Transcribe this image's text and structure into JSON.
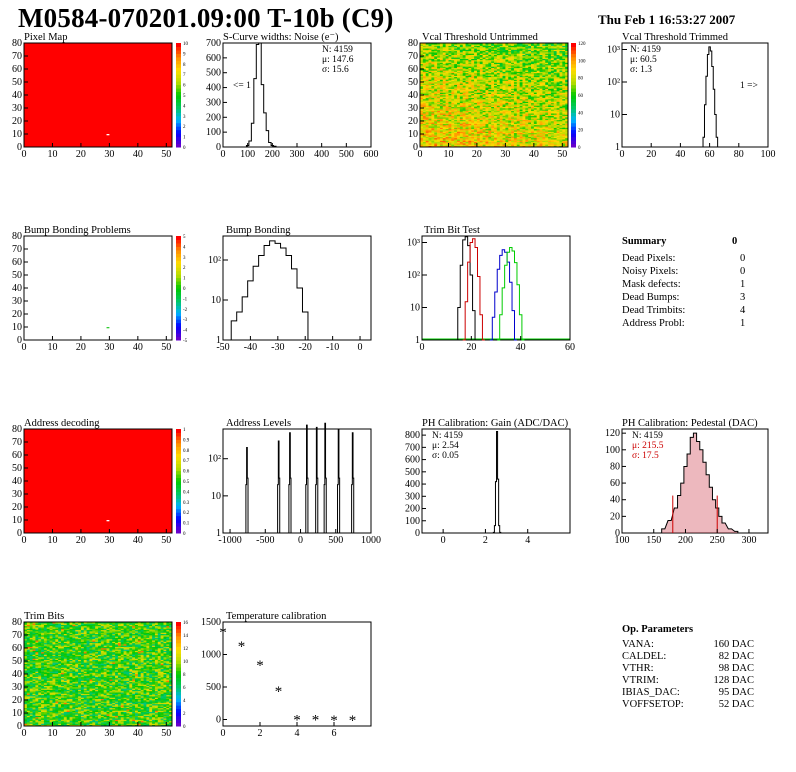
{
  "header": {
    "title": "M0584-070201.09:00 T-10b (C9)",
    "date": "Thu Feb  1 16:53:27 2007"
  },
  "colors": {
    "red_map": "#ff0000",
    "green_map": "#33cc33",
    "trim_series": [
      "#000000",
      "#cc0000",
      "#0000cc",
      "#00cc00"
    ],
    "pedestal_fill": "#cc3344"
  },
  "panels": {
    "pixel_map": {
      "title": "Pixel Map",
      "xticks": [
        "0",
        "10",
        "20",
        "30",
        "40",
        "50"
      ],
      "yticks": [
        "0",
        "10",
        "20",
        "30",
        "40",
        "50",
        "60",
        "70",
        "80"
      ],
      "palette_ticks": [
        "0",
        "1",
        "2",
        "3",
        "4",
        "5",
        "6",
        "7",
        "8",
        "9",
        "10"
      ]
    },
    "scurve": {
      "title": "S-Curve widths: Noise (e⁻)",
      "xticks": [
        "0",
        "100",
        "200",
        "300",
        "400",
        "500",
        "600"
      ],
      "yticks": [
        "0",
        "100",
        "200",
        "300",
        "400",
        "500",
        "600",
        "700"
      ],
      "stats": [
        "N: 4159",
        "μ: 147.6",
        "σ: 15.6"
      ],
      "overflow_label": "<= 1"
    },
    "vcal_untrimmed": {
      "title": "Vcal Threshold Untrimmed",
      "xticks": [
        "0",
        "10",
        "20",
        "30",
        "40",
        "50"
      ],
      "yticks": [
        "0",
        "10",
        "20",
        "30",
        "40",
        "50",
        "60",
        "70",
        "80"
      ],
      "palette_ticks": [
        "0",
        "20",
        "40",
        "60",
        "80",
        "100",
        "120"
      ]
    },
    "vcal_trimmed": {
      "title": "Vcal Threshold Trimmed",
      "xticks": [
        "0",
        "20",
        "40",
        "60",
        "80",
        "100"
      ],
      "yticks": [
        "1",
        "10",
        "10²",
        "10³"
      ],
      "stats": [
        "N: 4159",
        "μ: 60.5",
        "σ:  1.3"
      ],
      "overflow_label": "1 =>"
    },
    "bump_problems": {
      "title": "Bump Bonding Problems",
      "xticks": [
        "0",
        "10",
        "20",
        "30",
        "40",
        "50"
      ],
      "yticks": [
        "0",
        "10",
        "20",
        "30",
        "40",
        "50",
        "60",
        "70",
        "80"
      ],
      "palette_ticks": [
        "-5",
        "-4",
        "-3",
        "-2",
        "-1",
        "0",
        "1",
        "2",
        "3",
        "4",
        "5"
      ]
    },
    "bump_bonding": {
      "title": "Bump Bonding",
      "xticks": [
        "-50",
        "-40",
        "-30",
        "-20",
        "-10",
        "0"
      ],
      "yticks": [
        "1",
        "10",
        "10²"
      ]
    },
    "trim_bit_test": {
      "title": "Trim Bit Test",
      "xticks": [
        "0",
        "20",
        "40",
        "60"
      ],
      "yticks": [
        "1",
        "10",
        "10²",
        "10³"
      ]
    },
    "address_decoding": {
      "title": "Address decoding",
      "xticks": [
        "0",
        "10",
        "20",
        "30",
        "40",
        "50"
      ],
      "yticks": [
        "0",
        "10",
        "20",
        "30",
        "40",
        "50",
        "60",
        "70",
        "80"
      ],
      "palette_ticks": [
        "0",
        "0.1",
        "0.2",
        "0.3",
        "0.4",
        "0.5",
        "0.6",
        "0.7",
        "0.8",
        "0.9",
        "1"
      ]
    },
    "address_levels": {
      "title": "Address Levels",
      "xticks": [
        "-1000",
        "-500",
        "0",
        "500",
        "1000"
      ],
      "yticks": [
        "1",
        "10",
        "10²"
      ]
    },
    "ph_gain": {
      "title": "PH Calibration: Gain (ADC/DAC)",
      "xticks": [
        "0",
        "2",
        "4"
      ],
      "yticks": [
        "0",
        "100",
        "200",
        "300",
        "400",
        "500",
        "600",
        "700",
        "800"
      ],
      "stats": [
        "N: 4159",
        "μ: 2.54",
        "σ: 0.05"
      ]
    },
    "ph_pedestal": {
      "title": "PH Calibration: Pedestal (DAC)",
      "xticks": [
        "100",
        "150",
        "200",
        "250",
        "300"
      ],
      "yticks": [
        "0",
        "20",
        "40",
        "60",
        "80",
        "100",
        "120"
      ],
      "stats": [
        "N: 4159",
        "μ: 215.5",
        "σ: 17.5"
      ]
    },
    "trim_bits": {
      "title": "Trim Bits",
      "xticks": [
        "0",
        "10",
        "20",
        "30",
        "40",
        "50"
      ],
      "yticks": [
        "0",
        "10",
        "20",
        "30",
        "40",
        "50",
        "60",
        "70",
        "80"
      ],
      "palette_ticks": [
        "0",
        "2",
        "4",
        "6",
        "8",
        "10",
        "12",
        "14",
        "16"
      ]
    },
    "temperature": {
      "title": "Temperature calibration",
      "xticks": [
        "0",
        "2",
        "4",
        "6"
      ],
      "yticks": [
        "0",
        "500",
        "1000",
        "1500"
      ]
    }
  },
  "summary": {
    "title": "Summary",
    "total": "0",
    "rows": [
      {
        "label": "Dead Pixels:",
        "value": "0"
      },
      {
        "label": "Noisy Pixels:",
        "value": "0"
      },
      {
        "label": "Mask defects:",
        "value": "1"
      },
      {
        "label": "Dead Bumps:",
        "value": "3"
      },
      {
        "label": "Dead Trimbits:",
        "value": "4"
      },
      {
        "label": "Address Probl:",
        "value": "1"
      }
    ]
  },
  "op_parameters": {
    "title": "Op. Parameters",
    "rows": [
      {
        "label": "VANA:",
        "value": "160 DAC"
      },
      {
        "label": "CALDEL:",
        "value": "82 DAC"
      },
      {
        "label": "VTHR:",
        "value": "98 DAC"
      },
      {
        "label": "VTRIM:",
        "value": "128 DAC"
      },
      {
        "label": "IBIAS_DAC:",
        "value": "95 DAC"
      },
      {
        "label": "VOFFSETOP:",
        "value": "52 DAC"
      }
    ]
  },
  "chart_data": [
    {
      "type": "heatmap",
      "title": "Pixel Map",
      "xlim": [
        0,
        52
      ],
      "ylim": [
        0,
        80
      ],
      "zlim": [
        0,
        10
      ],
      "uniform_value": 10,
      "outliers": [
        {
          "x": 29,
          "y": 9,
          "value": 0
        }
      ]
    },
    {
      "type": "bar",
      "title": "S-Curve widths: Noise (e⁻)",
      "xlim": [
        0,
        600
      ],
      "ylim": [
        0,
        700
      ],
      "x": [
        100,
        110,
        120,
        130,
        140,
        150,
        160,
        170,
        180,
        190,
        200,
        210
      ],
      "values": [
        10,
        40,
        160,
        460,
        690,
        700,
        420,
        230,
        110,
        30,
        10,
        5
      ],
      "stats": {
        "N": 4159,
        "mean": 147.6,
        "sigma": 15.6
      }
    },
    {
      "type": "heatmap",
      "title": "Vcal Threshold Untrimmed",
      "xlim": [
        0,
        52
      ],
      "ylim": [
        0,
        80
      ],
      "zlim": [
        0,
        120
      ]
    },
    {
      "type": "bar",
      "title": "Vcal Threshold Trimmed",
      "log_y": true,
      "xlim": [
        0,
        100
      ],
      "x": [
        56,
        57,
        58,
        59,
        60,
        61,
        62,
        63,
        64,
        65
      ],
      "values": [
        2,
        20,
        150,
        700,
        1200,
        900,
        300,
        60,
        10,
        2
      ],
      "stats": {
        "N": 4159,
        "mean": 60.5,
        "sigma": 1.3
      }
    },
    {
      "type": "heatmap",
      "title": "Bump Bonding Problems",
      "xlim": [
        0,
        52
      ],
      "ylim": [
        0,
        80
      ],
      "zlim": [
        -5,
        5
      ],
      "outliers": [
        {
          "x": 29,
          "y": 9,
          "value": 2
        }
      ]
    },
    {
      "type": "bar",
      "title": "Bump Bonding",
      "log_y": true,
      "xlim": [
        -50,
        4
      ],
      "x": [
        -48,
        -46,
        -44,
        -42,
        -40,
        -38,
        -36,
        -34,
        -32,
        -30,
        -28,
        -26,
        -24,
        -22,
        -20,
        -18,
        -15,
        -7,
        -1
      ],
      "values": [
        1,
        3,
        5,
        12,
        30,
        70,
        130,
        230,
        300,
        260,
        200,
        130,
        60,
        20,
        5,
        1,
        1,
        1,
        1
      ]
    },
    {
      "type": "line",
      "title": "Trim Bit Test",
      "log_y": true,
      "xlim": [
        0,
        60
      ],
      "series": [
        {
          "x": [
            14,
            15,
            16,
            17,
            18,
            19,
            20,
            21,
            22
          ],
          "values": [
            1,
            10,
            200,
            1200,
            1500,
            800,
            100,
            8,
            1
          ]
        },
        {
          "x": [
            17,
            18,
            19,
            20,
            21,
            22,
            23,
            24,
            25
          ],
          "values": [
            1,
            15,
            250,
            1000,
            1300,
            700,
            90,
            6,
            1
          ]
        },
        {
          "x": [
            28,
            29,
            30,
            31,
            32,
            33,
            34,
            35,
            36,
            37,
            38
          ],
          "values": [
            1,
            5,
            30,
            150,
            400,
            600,
            500,
            250,
            60,
            8,
            1
          ]
        },
        {
          "x": [
            31,
            32,
            33,
            34,
            35,
            36,
            37,
            38,
            39,
            40,
            41
          ],
          "values": [
            1,
            6,
            40,
            200,
            500,
            700,
            550,
            240,
            50,
            6,
            1
          ]
        }
      ]
    },
    {
      "type": "heatmap",
      "title": "Address decoding",
      "xlim": [
        0,
        52
      ],
      "ylim": [
        0,
        80
      ],
      "zlim": [
        0,
        1
      ],
      "uniform_value": 1,
      "outliers": [
        {
          "x": 29,
          "y": 9,
          "value": 0
        }
      ]
    },
    {
      "type": "bar",
      "title": "Address Levels",
      "log_y": true,
      "xlim": [
        -1100,
        1000
      ],
      "peaks": [
        -760,
        -310,
        -150,
        90,
        230,
        350,
        540,
        740
      ],
      "peak_heights": [
        200,
        300,
        500,
        800,
        700,
        900,
        600,
        500
      ]
    },
    {
      "type": "bar",
      "title": "PH Calibration: Gain (ADC/DAC)",
      "xlim": [
        -1,
        6
      ],
      "ylim": [
        0,
        850
      ],
      "x": [
        2.4,
        2.45,
        2.5,
        2.55,
        2.6,
        2.65,
        2.7
      ],
      "values": [
        5,
        60,
        420,
        830,
        440,
        60,
        5
      ],
      "stats": {
        "N": 4159,
        "mean": 2.54,
        "sigma": 0.05
      }
    },
    {
      "type": "bar",
      "title": "PH Calibration: Pedestal (DAC)",
      "xlim": [
        100,
        330
      ],
      "ylim": [
        0,
        125
      ],
      "x": [
        165,
        175,
        185,
        190,
        195,
        200,
        205,
        210,
        215,
        220,
        225,
        230,
        235,
        240,
        245,
        250,
        255,
        260,
        270,
        280
      ],
      "values": [
        5,
        15,
        30,
        45,
        60,
        80,
        95,
        115,
        120,
        110,
        100,
        85,
        70,
        55,
        40,
        30,
        20,
        12,
        5,
        2
      ],
      "stats": {
        "N": 4159,
        "mean": 215.5,
        "sigma": 17.5
      }
    },
    {
      "type": "heatmap",
      "title": "Trim Bits",
      "xlim": [
        0,
        52
      ],
      "ylim": [
        0,
        80
      ],
      "zlim": [
        0,
        16
      ]
    },
    {
      "type": "scatter",
      "title": "Temperature calibration",
      "xlim": [
        0,
        8
      ],
      "ylim": [
        -100,
        1500
      ],
      "x": [
        0,
        1,
        2,
        3,
        4,
        5,
        6,
        7
      ],
      "values": [
        1350,
        1130,
        840,
        440,
        0,
        0,
        -10,
        -10
      ]
    }
  ]
}
